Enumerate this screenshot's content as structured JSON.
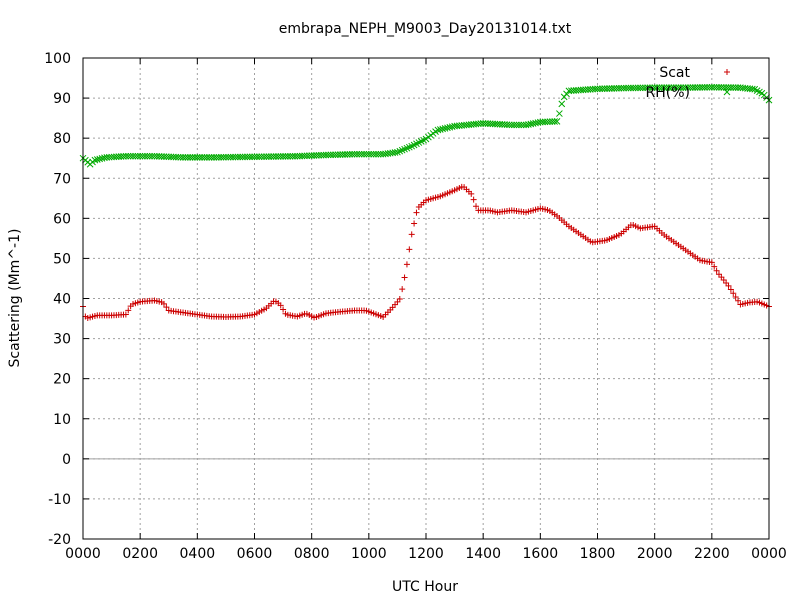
{
  "chart_data": {
    "type": "scatter",
    "title": "embrapa_NEPH_M9003_Day20131014.txt",
    "xlabel": "UTC Hour",
    "ylabel": "Scattering (Mm^-1)",
    "xlim": [
      0,
      24
    ],
    "ylim": [
      -20,
      100
    ],
    "x_ticks": [
      0,
      2,
      4,
      6,
      8,
      10,
      12,
      14,
      16,
      18,
      20,
      22,
      24
    ],
    "x_tick_labels": [
      "0000",
      "0200",
      "0400",
      "0600",
      "0800",
      "1000",
      "1200",
      "1400",
      "1600",
      "1800",
      "2000",
      "2200",
      "0000"
    ],
    "y_ticks": [
      -20,
      -10,
      0,
      10,
      20,
      30,
      40,
      50,
      60,
      70,
      80,
      90,
      100
    ],
    "y_tick_labels": [
      "-20",
      "-10",
      "0",
      "10",
      "20",
      "30",
      "40",
      "50",
      "60",
      "70",
      "80",
      "90",
      "100"
    ],
    "grid": true,
    "zero_line": true,
    "legend_position": "top-right",
    "series": [
      {
        "name": "Scat",
        "marker": "plus",
        "color": "#cc0000",
        "anchors": [
          [
            0.0,
            38.0
          ],
          [
            0.1,
            35.0
          ],
          [
            0.5,
            35.8
          ],
          [
            1.0,
            35.8
          ],
          [
            1.5,
            36.0
          ],
          [
            1.7,
            38.5
          ],
          [
            2.0,
            39.2
          ],
          [
            2.5,
            39.5
          ],
          [
            2.8,
            39.0
          ],
          [
            3.0,
            37.0
          ],
          [
            3.5,
            36.5
          ],
          [
            4.0,
            36.0
          ],
          [
            4.5,
            35.5
          ],
          [
            5.0,
            35.4
          ],
          [
            5.5,
            35.5
          ],
          [
            6.0,
            36.0
          ],
          [
            6.4,
            37.5
          ],
          [
            6.7,
            39.5
          ],
          [
            6.9,
            38.5
          ],
          [
            7.1,
            36.0
          ],
          [
            7.5,
            35.5
          ],
          [
            7.8,
            36.3
          ],
          [
            8.1,
            35.2
          ],
          [
            8.5,
            36.3
          ],
          [
            9.0,
            36.7
          ],
          [
            9.5,
            37.0
          ],
          [
            9.9,
            37.0
          ],
          [
            10.2,
            36.2
          ],
          [
            10.5,
            35.4
          ],
          [
            10.8,
            37.5
          ],
          [
            11.1,
            40.0
          ],
          [
            11.3,
            47.0
          ],
          [
            11.5,
            56.0
          ],
          [
            11.7,
            62.5
          ],
          [
            12.0,
            64.5
          ],
          [
            12.5,
            65.5
          ],
          [
            13.0,
            67.0
          ],
          [
            13.3,
            68.0
          ],
          [
            13.6,
            66.0
          ],
          [
            13.8,
            62.0
          ],
          [
            14.2,
            62.0
          ],
          [
            14.5,
            61.5
          ],
          [
            15.0,
            62.0
          ],
          [
            15.5,
            61.5
          ],
          [
            16.0,
            62.5
          ],
          [
            16.3,
            62.0
          ],
          [
            16.6,
            60.5
          ],
          [
            17.0,
            58.0
          ],
          [
            17.5,
            55.5
          ],
          [
            17.8,
            54.0
          ],
          [
            18.3,
            54.5
          ],
          [
            18.8,
            56.0
          ],
          [
            19.2,
            58.5
          ],
          [
            19.5,
            57.5
          ],
          [
            20.0,
            58.0
          ],
          [
            20.3,
            56.0
          ],
          [
            20.7,
            54.0
          ],
          [
            21.0,
            52.5
          ],
          [
            21.3,
            51.0
          ],
          [
            21.6,
            49.5
          ],
          [
            22.0,
            49.0
          ],
          [
            22.2,
            46.5
          ],
          [
            22.6,
            43.0
          ],
          [
            23.0,
            38.5
          ],
          [
            23.3,
            39.0
          ],
          [
            23.6,
            39.2
          ],
          [
            24.0,
            38.0
          ]
        ]
      },
      {
        "name": "RH(%)",
        "marker": "cross",
        "color": "#00aa00",
        "anchors": [
          [
            0.0,
            75.0
          ],
          [
            0.25,
            73.5
          ],
          [
            0.4,
            74.5
          ],
          [
            0.8,
            75.2
          ],
          [
            1.5,
            75.5
          ],
          [
            2.5,
            75.5
          ],
          [
            3.5,
            75.2
          ],
          [
            4.5,
            75.2
          ],
          [
            5.5,
            75.3
          ],
          [
            6.5,
            75.4
          ],
          [
            7.5,
            75.5
          ],
          [
            8.5,
            75.8
          ],
          [
            9.5,
            76.0
          ],
          [
            10.5,
            76.0
          ],
          [
            11.0,
            76.5
          ],
          [
            11.5,
            78.0
          ],
          [
            12.0,
            79.8
          ],
          [
            12.4,
            82.0
          ],
          [
            13.0,
            83.0
          ],
          [
            14.0,
            83.7
          ],
          [
            15.0,
            83.3
          ],
          [
            15.5,
            83.3
          ],
          [
            16.0,
            84.0
          ],
          [
            16.6,
            84.2
          ],
          [
            16.8,
            90.0
          ],
          [
            17.0,
            91.8
          ],
          [
            18.0,
            92.3
          ],
          [
            19.0,
            92.5
          ],
          [
            20.0,
            92.6
          ],
          [
            21.0,
            92.6
          ],
          [
            22.0,
            92.7
          ],
          [
            23.0,
            92.6
          ],
          [
            23.5,
            92.2
          ],
          [
            23.8,
            91.0
          ],
          [
            24.0,
            89.5
          ]
        ]
      }
    ]
  }
}
